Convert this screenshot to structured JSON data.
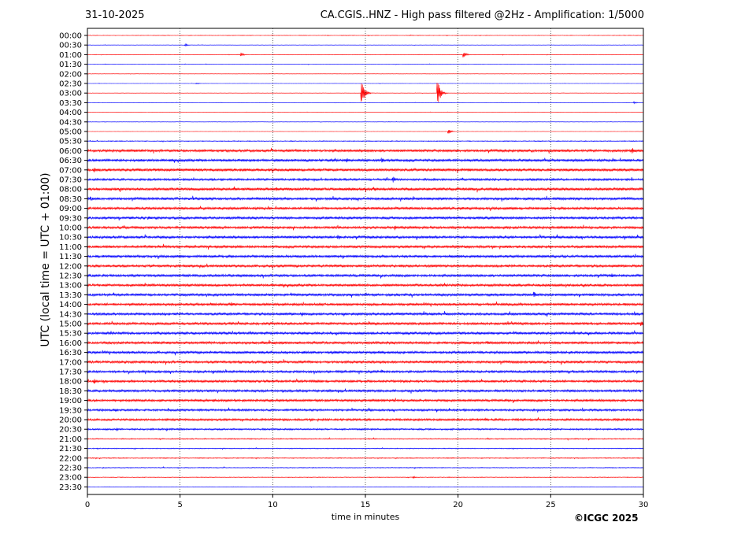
{
  "header": {
    "date": "31-10-2025",
    "station_title": "CA.CGIS..HNZ - High pass filtered @2Hz - Amplification: 1/5000"
  },
  "footer": {
    "copyright": "©ICGC 2025"
  },
  "colors": {
    "trace_a": "#ff0000",
    "trace_b": "#0000ff",
    "grid": "#000000",
    "axis": "#000000"
  },
  "chart_data": {
    "type": "line",
    "title": "CA.CGIS..HNZ - High pass filtered @2Hz - Amplification: 1/5000",
    "xlabel": "time in minutes",
    "ylabel": "UTC (local time = UTC + 01:00)",
    "xlim": [
      0,
      30
    ],
    "x_ticks": [
      "0",
      "5",
      "10",
      "15",
      "20",
      "25",
      "30"
    ],
    "grid": {
      "vertical": true,
      "horizontal": false
    },
    "rows": [
      "00:00",
      "00:30",
      "01:00",
      "01:30",
      "02:00",
      "02:30",
      "03:00",
      "03:30",
      "04:00",
      "04:30",
      "05:00",
      "05:30",
      "06:00",
      "06:30",
      "07:00",
      "07:30",
      "08:00",
      "08:30",
      "09:00",
      "09:30",
      "10:00",
      "10:30",
      "11:00",
      "11:30",
      "12:00",
      "12:30",
      "13:00",
      "13:30",
      "14:00",
      "14:30",
      "15:00",
      "15:30",
      "16:00",
      "16:30",
      "17:00",
      "17:30",
      "18:00",
      "18:30",
      "19:00",
      "19:30",
      "20:00",
      "20:30",
      "21:00",
      "21:30",
      "22:00",
      "22:30",
      "23:00",
      "23:30"
    ],
    "row_colors": [
      "red",
      "blue"
    ],
    "noise_level_by_row": [
      0.6,
      0.5,
      0.6,
      0.5,
      0.4,
      0.4,
      0.4,
      0.4,
      0.4,
      0.5,
      0.4,
      1.0,
      3.0,
      3.0,
      3.5,
      2.5,
      3.5,
      3.0,
      3.0,
      3.0,
      3.0,
      3.0,
      3.0,
      3.0,
      3.0,
      3.0,
      3.0,
      3.0,
      3.0,
      3.0,
      3.0,
      3.0,
      3.0,
      3.0,
      3.0,
      2.8,
      2.8,
      2.8,
      2.8,
      2.5,
      2.5,
      2.0,
      1.2,
      1.0,
      1.0,
      1.0,
      0.8,
      0.6
    ],
    "events": [
      {
        "row": "00:30",
        "minute": 5.3,
        "amplitude": 3
      },
      {
        "row": "01:00",
        "minute": 8.3,
        "amplitude": 5
      },
      {
        "row": "01:00",
        "minute": 20.3,
        "amplitude": 8
      },
      {
        "row": "02:30",
        "minute": 5.9,
        "amplitude": 2
      },
      {
        "row": "03:00",
        "minute": 14.8,
        "amplitude": 40
      },
      {
        "row": "03:00",
        "minute": 18.9,
        "amplitude": 38
      },
      {
        "row": "03:30",
        "minute": 29.5,
        "amplitude": 3
      },
      {
        "row": "05:00",
        "minute": 19.5,
        "amplitude": 6
      },
      {
        "row": "06:00",
        "minute": 29.4,
        "amplitude": 8
      },
      {
        "row": "06:30",
        "minute": 14.0,
        "amplitude": 7
      },
      {
        "row": "06:30",
        "minute": 15.9,
        "amplitude": 7
      },
      {
        "row": "07:00",
        "minute": 0.4,
        "amplitude": 7
      },
      {
        "row": "07:30",
        "minute": 16.5,
        "amplitude": 8
      },
      {
        "row": "08:00",
        "minute": 10.2,
        "amplitude": 6
      },
      {
        "row": "08:00",
        "minute": 15.5,
        "amplitude": 7
      },
      {
        "row": "08:30",
        "minute": 0.2,
        "amplitude": 7
      },
      {
        "row": "09:00",
        "minute": 3.2,
        "amplitude": 5
      },
      {
        "row": "09:30",
        "minute": 3.3,
        "amplitude": 5
      },
      {
        "row": "10:00",
        "minute": 16.6,
        "amplitude": 8
      },
      {
        "row": "10:30",
        "minute": 13.5,
        "amplitude": 7
      },
      {
        "row": "11:00",
        "minute": 3.1,
        "amplitude": 5
      },
      {
        "row": "12:30",
        "minute": 28.3,
        "amplitude": 6
      },
      {
        "row": "13:30",
        "minute": 24.1,
        "amplitude": 9
      },
      {
        "row": "14:00",
        "minute": 6.7,
        "amplitude": 6
      },
      {
        "row": "14:00",
        "minute": 7.8,
        "amplitude": 6
      },
      {
        "row": "14:30",
        "minute": 11.6,
        "amplitude": 6
      },
      {
        "row": "15:00",
        "minute": 29.9,
        "amplitude": 6
      },
      {
        "row": "16:00",
        "minute": 21.6,
        "amplitude": 6
      },
      {
        "row": "17:30",
        "minute": 15.9,
        "amplitude": 6
      },
      {
        "row": "18:00",
        "minute": 0.4,
        "amplitude": 6
      },
      {
        "row": "19:00",
        "minute": 6.8,
        "amplitude": 5
      },
      {
        "row": "19:30",
        "minute": 1.5,
        "amplitude": 6
      },
      {
        "row": "20:00",
        "minute": 21.5,
        "amplitude": 5
      },
      {
        "row": "20:30",
        "minute": 1.6,
        "amplitude": 5
      },
      {
        "row": "23:00",
        "minute": 17.6,
        "amplitude": 3
      }
    ]
  }
}
